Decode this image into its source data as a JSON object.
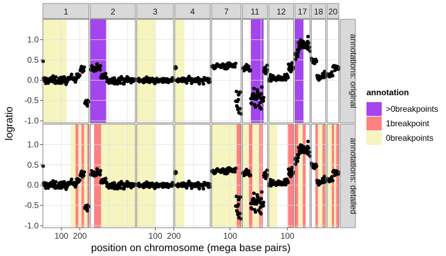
{
  "chart_data": {
    "type": "scatter",
    "xlabel": "position on chromosome (mega base pairs)",
    "ylabel": "logratio",
    "ylim": [
      -1.0,
      1.5
    ],
    "y_ticks": [
      "1.0",
      "0.5",
      "0.0",
      "-0.5",
      "-1.0"
    ],
    "y_tick_values": [
      1.0,
      0.5,
      0.0,
      -0.5,
      -1.0
    ],
    "x_tick_values": [
      100,
      200
    ],
    "grid": true,
    "legend_position": "right",
    "panel_rows": [
      {
        "label": "annotations: original"
      },
      {
        "label": "annotations: detailed"
      }
    ],
    "panels": [
      {
        "label": "1",
        "span_mb": 249
      },
      {
        "label": "2",
        "span_mb": 243
      },
      {
        "label": "3",
        "span_mb": 198
      },
      {
        "label": "4",
        "span_mb": 191
      },
      {
        "label": "7",
        "span_mb": 159
      },
      {
        "label": "11",
        "span_mb": 135
      },
      {
        "label": "12",
        "span_mb": 133
      },
      {
        "label": "17",
        "span_mb": 81
      },
      {
        "label": "18",
        "span_mb": 78
      },
      {
        "label": "20",
        "span_mb": 63
      }
    ],
    "x_tick_labels": [
      {
        "panel": 0,
        "value": 100,
        "label": "100"
      },
      {
        "panel": 0,
        "value": 200,
        "label": "200"
      },
      {
        "panel": 2,
        "value": 100,
        "label": "100"
      },
      {
        "panel": 2,
        "value": 200,
        "label": "200"
      },
      {
        "panel": 4,
        "value": 100,
        "label": "100"
      },
      {
        "panel": 6,
        "value": 100,
        "label": "100"
      }
    ],
    "legend": {
      "title": "annotation",
      "items": [
        {
          "label": ">0breakpoints",
          "color": "#a445ee"
        },
        {
          "label": "1breakpoint",
          "color": "#ff8080"
        },
        {
          "label": "0breakpoints",
          "color": "#f6f4bf"
        }
      ]
    },
    "annotations": [
      {
        "row": 0,
        "panel": 0,
        "start": 0,
        "end": 128,
        "type": "0breakpoints"
      },
      {
        "row": 0,
        "panel": 1,
        "start": 0,
        "end": 85,
        "type": ">0breakpoints"
      },
      {
        "row": 0,
        "panel": 2,
        "start": 0,
        "end": 100,
        "type": "0breakpoints"
      },
      {
        "row": 0,
        "panel": 3,
        "start": 0,
        "end": 52,
        "type": "0breakpoints"
      },
      {
        "row": 0,
        "panel": 5,
        "start": 45,
        "end": 114,
        "type": ">0breakpoints"
      },
      {
        "row": 0,
        "panel": 7,
        "start": 0,
        "end": 46,
        "type": ">0breakpoints"
      },
      {
        "row": 1,
        "panel": 0,
        "start": 150,
        "end": 176,
        "type": "0breakpoints"
      },
      {
        "row": 1,
        "panel": 0,
        "start": 176,
        "end": 192,
        "type": "1breakpoint"
      },
      {
        "row": 1,
        "panel": 0,
        "start": 192,
        "end": 208,
        "type": "0breakpoints"
      },
      {
        "row": 1,
        "panel": 0,
        "start": 208,
        "end": 223,
        "type": "1breakpoint"
      },
      {
        "row": 1,
        "panel": 0,
        "start": 223,
        "end": 240,
        "type": "0breakpoints"
      },
      {
        "row": 1,
        "panel": 0,
        "start": 240,
        "end": 249,
        "type": "1breakpoint"
      },
      {
        "row": 1,
        "panel": 1,
        "start": 20,
        "end": 58,
        "type": "1breakpoint"
      },
      {
        "row": 1,
        "panel": 1,
        "start": 58,
        "end": 243,
        "type": "0breakpoints"
      },
      {
        "row": 1,
        "panel": 2,
        "start": 0,
        "end": 100,
        "type": "0breakpoints"
      },
      {
        "row": 1,
        "panel": 3,
        "start": 0,
        "end": 52,
        "type": "0breakpoints"
      },
      {
        "row": 1,
        "panel": 4,
        "start": 0,
        "end": 135,
        "type": "0breakpoints"
      },
      {
        "row": 1,
        "panel": 4,
        "start": 135,
        "end": 159,
        "type": "1breakpoint"
      },
      {
        "row": 1,
        "panel": 5,
        "start": 0,
        "end": 35,
        "type": "0breakpoints"
      },
      {
        "row": 1,
        "panel": 5,
        "start": 35,
        "end": 54,
        "type": "1breakpoint"
      },
      {
        "row": 1,
        "panel": 5,
        "start": 54,
        "end": 90,
        "type": "0breakpoints"
      },
      {
        "row": 1,
        "panel": 5,
        "start": 90,
        "end": 110,
        "type": "1breakpoint"
      },
      {
        "row": 1,
        "panel": 6,
        "start": 0,
        "end": 45,
        "type": "0breakpoints"
      },
      {
        "row": 1,
        "panel": 6,
        "start": 103,
        "end": 133,
        "type": "1breakpoint"
      },
      {
        "row": 1,
        "panel": 7,
        "start": 0,
        "end": 18,
        "type": "1breakpoint"
      },
      {
        "row": 1,
        "panel": 7,
        "start": 18,
        "end": 42,
        "type": "0breakpoints"
      },
      {
        "row": 1,
        "panel": 7,
        "start": 42,
        "end": 58,
        "type": "1breakpoint"
      },
      {
        "row": 1,
        "panel": 8,
        "start": 22,
        "end": 36,
        "type": "1breakpoint"
      },
      {
        "row": 1,
        "panel": 8,
        "start": 36,
        "end": 60,
        "type": "0breakpoints"
      },
      {
        "row": 1,
        "panel": 8,
        "start": 60,
        "end": 74,
        "type": "1breakpoint"
      },
      {
        "row": 1,
        "panel": 9,
        "start": 0,
        "end": 25,
        "type": "0breakpoints"
      },
      {
        "row": 1,
        "panel": 9,
        "start": 25,
        "end": 38,
        "type": "1breakpoint"
      },
      {
        "row": 1,
        "panel": 9,
        "start": 38,
        "end": 49,
        "type": "0breakpoints"
      },
      {
        "row": 1,
        "panel": 9,
        "start": 49,
        "end": 63,
        "type": "1breakpoint"
      }
    ],
    "segments": [
      {
        "panel": 0,
        "start": 0,
        "end": 2,
        "mean": 0.45,
        "sd": 0.03,
        "n": 1
      },
      {
        "panel": 0,
        "start": 2,
        "end": 145,
        "mean": 0.0,
        "sd": 0.09,
        "n": 60
      },
      {
        "panel": 0,
        "start": 145,
        "end": 180,
        "mean": 0.05,
        "sd": 0.08,
        "n": 14
      },
      {
        "panel": 0,
        "start": 180,
        "end": 200,
        "mean": 0.12,
        "sd": 0.08,
        "n": 9
      },
      {
        "panel": 0,
        "start": 200,
        "end": 225,
        "mean": 0.25,
        "sd": 0.08,
        "n": 10
      },
      {
        "panel": 0,
        "start": 225,
        "end": 249,
        "mean": -0.55,
        "sd": 0.08,
        "n": 10
      },
      {
        "panel": 1,
        "start": 0,
        "end": 55,
        "mean": 0.28,
        "sd": 0.1,
        "n": 22
      },
      {
        "panel": 1,
        "start": 55,
        "end": 85,
        "mean": 0.1,
        "sd": 0.08,
        "n": 12
      },
      {
        "panel": 1,
        "start": 85,
        "end": 243,
        "mean": 0.0,
        "sd": 0.08,
        "n": 60
      },
      {
        "panel": 2,
        "start": 0,
        "end": 198,
        "mean": 0.0,
        "sd": 0.07,
        "n": 65
      },
      {
        "panel": 3,
        "start": 0,
        "end": 8,
        "mean": 0.35,
        "sd": 0.1,
        "n": 4
      },
      {
        "panel": 3,
        "start": 8,
        "end": 191,
        "mean": 0.0,
        "sd": 0.07,
        "n": 60
      },
      {
        "panel": 4,
        "start": 0,
        "end": 130,
        "mean": 0.35,
        "sd": 0.08,
        "n": 45
      },
      {
        "panel": 4,
        "start": 130,
        "end": 159,
        "mean": -0.45,
        "sd": 0.35,
        "n": 14
      },
      {
        "panel": 5,
        "start": 0,
        "end": 45,
        "mean": 0.3,
        "sd": 0.09,
        "n": 16
      },
      {
        "panel": 5,
        "start": 45,
        "end": 114,
        "mean": -0.45,
        "sd": 0.25,
        "n": 40
      },
      {
        "panel": 5,
        "start": 114,
        "end": 135,
        "mean": 0.25,
        "sd": 0.12,
        "n": 10
      },
      {
        "panel": 6,
        "start": 0,
        "end": 105,
        "mean": 0.05,
        "sd": 0.08,
        "n": 40
      },
      {
        "panel": 6,
        "start": 105,
        "end": 133,
        "mean": 0.3,
        "sd": 0.12,
        "n": 14
      },
      {
        "panel": 7,
        "start": 0,
        "end": 18,
        "mean": 0.6,
        "sd": 0.12,
        "n": 10
      },
      {
        "panel": 7,
        "start": 18,
        "end": 81,
        "mean": 0.85,
        "sd": 0.18,
        "n": 34
      },
      {
        "panel": 8,
        "start": 0,
        "end": 30,
        "mean": 0.45,
        "sd": 0.08,
        "n": 12
      },
      {
        "panel": 8,
        "start": 30,
        "end": 78,
        "mean": 0.1,
        "sd": 0.09,
        "n": 20
      },
      {
        "panel": 9,
        "start": 0,
        "end": 30,
        "mean": 0.15,
        "sd": 0.08,
        "n": 12
      },
      {
        "panel": 9,
        "start": 30,
        "end": 63,
        "mean": 0.32,
        "sd": 0.08,
        "n": 14
      }
    ]
  }
}
